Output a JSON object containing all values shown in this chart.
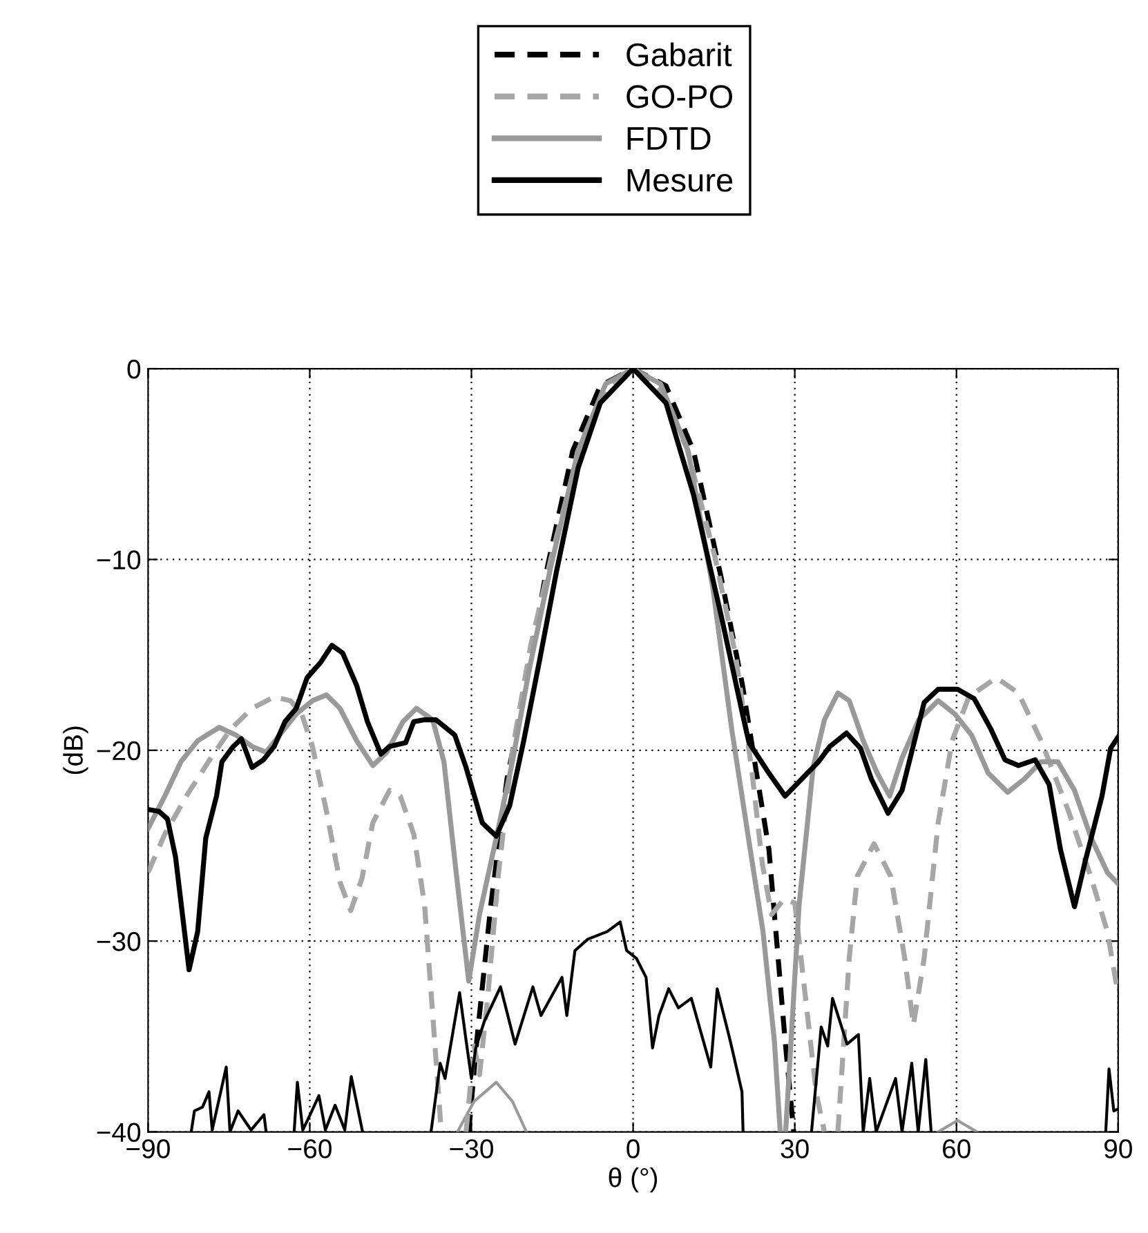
{
  "chart_data": {
    "type": "line",
    "xlabel": "θ (°)",
    "ylabel": "(dB)",
    "xlim": [
      -90,
      90
    ],
    "ylim": [
      -40,
      0
    ],
    "xticks": [
      {
        "value": -90,
        "label": "−90"
      },
      {
        "value": -60,
        "label": "−60"
      },
      {
        "value": -30,
        "label": "−30"
      },
      0,
      30,
      60,
      90
    ],
    "yticks": [
      {
        "value": -40,
        "label": "−40"
      },
      {
        "value": -30,
        "label": "−30"
      },
      {
        "value": -20,
        "label": "−20"
      },
      {
        "value": -10,
        "label": "−10"
      },
      0
    ],
    "grid": true,
    "legend": "top",
    "marker": "none",
    "series": [
      {
        "name": "Gabarit",
        "color": "#000000",
        "line_style": "dashed",
        "x": [
          -30.5,
          -29,
          -26.4,
          -23.4,
          -20.3,
          -16.3,
          -11.2,
          -6.1,
          0,
          6.1,
          11.2,
          16.3,
          20.3,
          22.9,
          25.2,
          28.2,
          29.8
        ],
        "values": [
          -40,
          -35.2,
          -28.1,
          -21.5,
          -17.2,
          -10.9,
          -4.3,
          -0.9,
          0,
          -0.9,
          -4.3,
          -10.9,
          -16.6,
          -21.2,
          -25.2,
          -35.2,
          -40
        ]
      },
      {
        "name": "GO-PO",
        "color": "#a6a6a6",
        "line_style": "dashed",
        "x": [
          -90,
          -86.9,
          -82.9,
          -78.8,
          -74.7,
          -70.7,
          -66.6,
          -63.6,
          -61.5,
          -59.5,
          -56.9,
          -54.4,
          -52.4,
          -50.3,
          -48.3,
          -45.2,
          -43.2,
          -40.7,
          -38.7,
          -37.2,
          -35.6,
          -33,
          -31,
          -29.5,
          -28.5,
          -27,
          -25,
          -22.4,
          -19,
          -15.3,
          -10,
          -5,
          0,
          5,
          10,
          15.3,
          19,
          22,
          24,
          25.7,
          28,
          30,
          32,
          34,
          35.5,
          36.8,
          38,
          40.1,
          41.6,
          44.7,
          47.8,
          50.4,
          52,
          54,
          56.6,
          59.2,
          62.3,
          67.4,
          71.5,
          75.7,
          80.8,
          84.9,
          88,
          90
        ],
        "values": [
          -26.4,
          -24.4,
          -22.4,
          -20.6,
          -18.9,
          -17.8,
          -17.2,
          -17.4,
          -18.1,
          -19.8,
          -23.2,
          -26.9,
          -28.4,
          -26.7,
          -23.8,
          -22.1,
          -22.4,
          -24.4,
          -28.1,
          -33.8,
          -40,
          null,
          -40,
          -35.5,
          -37,
          -33,
          -26.5,
          -20,
          -14.5,
          -10,
          -4.2,
          -1.1,
          0,
          -1.1,
          -4.2,
          -10,
          -15,
          -21,
          -26,
          -28.6,
          -27.8,
          -28,
          -33,
          -38,
          -40,
          null,
          -40,
          -30.9,
          -26.6,
          -24.9,
          -26.6,
          -30.9,
          -34.4,
          -30.9,
          -23.8,
          -19.5,
          -17.2,
          -16.2,
          -17,
          -19.5,
          -23.2,
          -26.6,
          -29.5,
          -32.8
        ]
      },
      {
        "name": "FDTD",
        "color": "#999999",
        "line_style": "solid",
        "x": [
          -90,
          -86.9,
          -83.9,
          -80.8,
          -76.8,
          -73.7,
          -70.7,
          -68.1,
          -65.6,
          -62.5,
          -59.5,
          -56.9,
          -54.4,
          -51.3,
          -48.3,
          -45.7,
          -42.7,
          -40.2,
          -37.2,
          -35.1,
          -32.8,
          -30.5,
          -28.5,
          -25.4,
          -22.4,
          -19.3,
          -15.3,
          -10.2,
          -5.1,
          0,
          5.1,
          10.2,
          14.8,
          18.3,
          21.4,
          24.1,
          26.2,
          27.3,
          27.8,
          28.3,
          30.8,
          33.4,
          35.5,
          38,
          40.1,
          42.7,
          45.3,
          47.6,
          49.9,
          53,
          56.6,
          59.7,
          62.8,
          65.9,
          69.5,
          72.6,
          75.7,
          78.8,
          81.9,
          85,
          88,
          90
        ],
        "values": [
          -24.1,
          -22.4,
          -20.6,
          -19.5,
          -18.8,
          -19.2,
          -19.8,
          -20.1,
          -19.2,
          -18.1,
          -17.4,
          -17.1,
          -17.8,
          -19.5,
          -20.8,
          -20.1,
          -18.5,
          -17.8,
          -18.4,
          -20.6,
          -26.5,
          -32.1,
          -28.6,
          -24.6,
          -20.6,
          -15.8,
          -10.4,
          -4.3,
          -0.8,
          0,
          -0.8,
          -4.3,
          -11.5,
          -18.9,
          -24.6,
          -29.5,
          -35.2,
          -40,
          null,
          -40,
          -28.1,
          -20.9,
          -18.4,
          -17,
          -17.4,
          -19.5,
          -21.2,
          -22.4,
          -20.4,
          -18.4,
          -17.4,
          -18.1,
          -19.2,
          -21.2,
          -22.2,
          -21.5,
          -20.6,
          -20.6,
          -22.1,
          -24.6,
          -26.4,
          -27
        ]
      },
      {
        "name": "Mesure",
        "color": "#000000",
        "line_style": "solid",
        "x": [
          -90,
          -88,
          -86.4,
          -84.9,
          -82.4,
          -80.8,
          -79.3,
          -77.3,
          -76.3,
          -74.2,
          -72.7,
          -70.7,
          -68.6,
          -66.6,
          -64.6,
          -62.5,
          -60.5,
          -58,
          -55.9,
          -53.9,
          -51.3,
          -49.3,
          -46.8,
          -45.2,
          -42.2,
          -40.7,
          -38.7,
          -36.6,
          -33.1,
          -31,
          -28,
          -25.4,
          -22.9,
          -20.3,
          -17.3,
          -14.2,
          -10.2,
          -6.1,
          0,
          6.1,
          11.2,
          16.3,
          20.3,
          21.5,
          25.2,
          28.2,
          31.3,
          34.4,
          36.5,
          39.6,
          42.2,
          44.2,
          47.3,
          49.9,
          54,
          56.6,
          60.2,
          63.3,
          66.4,
          69,
          71.5,
          74.6,
          77.2,
          79.3,
          81.9,
          83.9,
          87,
          88.6,
          90
        ],
        "values": [
          -23.1,
          -23.2,
          -23.6,
          -25.6,
          -31.5,
          -29.5,
          -24.6,
          -22.4,
          -20.6,
          -19.8,
          -19.4,
          -20.9,
          -20.5,
          -19.8,
          -18.5,
          -17.8,
          -16.2,
          -15.4,
          -14.5,
          -14.9,
          -16.6,
          -18.5,
          -20.2,
          -19.8,
          -19.6,
          -18.5,
          -18.4,
          -18.4,
          -19.2,
          -20.9,
          -23.8,
          -24.5,
          -22.9,
          -19.5,
          -15.2,
          -10.6,
          -5.2,
          -1.8,
          0,
          -1.8,
          -6.6,
          -12.9,
          -18.1,
          -19.6,
          -21.2,
          -22.4,
          -21.5,
          -20.6,
          -19.8,
          -19.1,
          -19.9,
          -21.5,
          -23.3,
          -22.1,
          -17.5,
          -16.8,
          -16.8,
          -17.3,
          -18.9,
          -20.5,
          -20.8,
          -20.5,
          -21.8,
          -25.2,
          -28.2,
          -25.8,
          -22.4,
          -19.9,
          -19.3
        ]
      },
      {
        "color": "#999999",
        "line_style": "solid",
        "x": [
          -32.6,
          -29.5,
          -25.4,
          -22.4,
          -19.8,
          20,
          56.6,
          60.2,
          63.8
        ],
        "values": [
          -40,
          -38.4,
          -37.4,
          -38.4,
          -40,
          null,
          -40,
          -39.4,
          -40
        ]
      },
      {
        "color": "#000000",
        "line_style": "solid",
        "x": [
          -82,
          -81.4,
          -79.9,
          -78.7,
          -78.1,
          -75.5,
          -74.8,
          -73.3,
          -72.1,
          -70.9,
          -68.5,
          -68.1,
          -65,
          -62.9,
          -62.3,
          -61.3,
          -60.1,
          -58.3,
          -57.1,
          -55.3,
          -53.5,
          -52.3,
          -50.2,
          -44,
          -37.5,
          -35.8,
          -34.9,
          -32.2,
          -31,
          -30,
          -29.2,
          -27.6,
          -24.6,
          -21.9,
          -18.6,
          -17.1,
          -13.2,
          -12.3,
          -10.8,
          -8.4,
          -4.8,
          -2.4,
          -1.2,
          0.6,
          2.4,
          3.6,
          4.8,
          6.6,
          8.4,
          10.8,
          14.4,
          15.6,
          18,
          20.2,
          20.4,
          27,
          33.1,
          34.9,
          36.1,
          37,
          39.7,
          41.8,
          42.7,
          43.9,
          45.1,
          48.7,
          49.9,
          51.7,
          52.9,
          54.3,
          55.3,
          70,
          87.7,
          88.3,
          89.2,
          90
        ],
        "values": [
          -40,
          -38.9,
          -38.7,
          -37.9,
          -39.9,
          -36.6,
          -40,
          -38.9,
          -39.4,
          -39.9,
          -39.1,
          -40,
          null,
          -40,
          -37.4,
          -39.9,
          -39.2,
          -38.1,
          -39.9,
          -38.6,
          -39.9,
          -37.1,
          -40,
          null,
          -40,
          -36.4,
          -37.2,
          -32.7,
          -35.2,
          -37.2,
          -35.6,
          -34.2,
          -32.4,
          -35.4,
          -32.4,
          -33.9,
          -31.9,
          -33.9,
          -30.5,
          -29.9,
          -29.5,
          -29,
          -30.5,
          -30.9,
          -31.9,
          -35.6,
          -33.9,
          -32.5,
          -33.5,
          -33,
          -36.6,
          -32.5,
          -35.2,
          -37.9,
          -40,
          null,
          -40,
          -34.5,
          -35.5,
          -33,
          -35.4,
          -34.9,
          -40,
          -37.2,
          -40,
          -37.2,
          -40,
          -36.4,
          -40,
          -36.2,
          -40,
          null,
          -40,
          -36.7,
          -38.9,
          -38.8
        ]
      }
    ]
  }
}
